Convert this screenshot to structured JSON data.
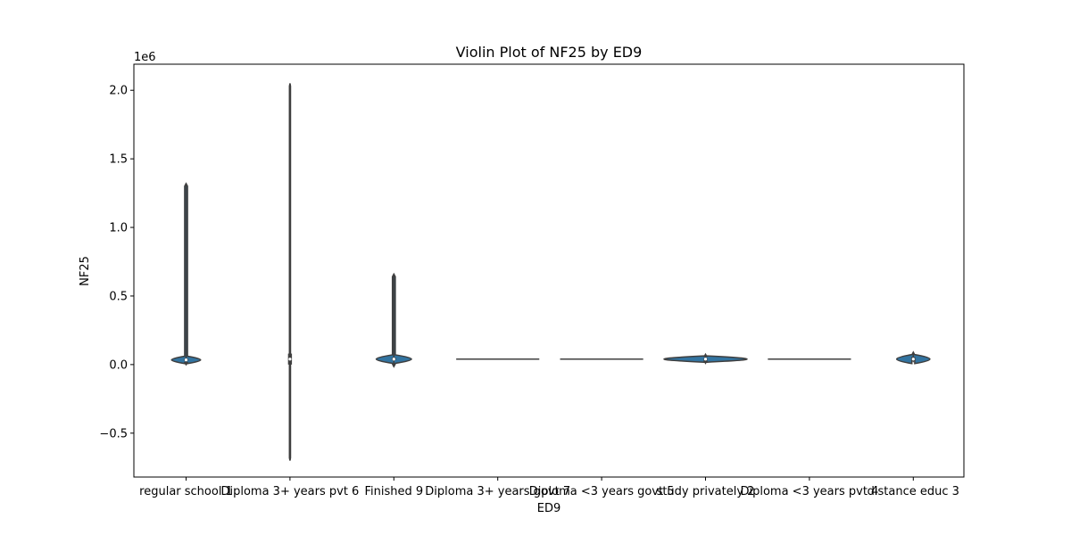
{
  "chart_data": {
    "type": "violin",
    "title": "Violin Plot of NF25 by ED9",
    "xlabel": "ED9",
    "ylabel": "NF25",
    "y_scale_label": "1e6",
    "ylim": [
      -0.82,
      2.19
    ],
    "y_ticks": [
      -0.5,
      0.0,
      0.5,
      1.0,
      1.5,
      2.0
    ],
    "y_tick_labels": [
      "−0.5",
      "0.0",
      "0.5",
      "1.0",
      "1.5",
      "2.0"
    ],
    "categories": [
      "regular school 1",
      "Diploma 3+ years pvt 6",
      "Finished 9",
      "Diploma 3+ years govt 7",
      "Diploma <3 years govt 5",
      "study privately 2",
      "Diploma <3 years pvt 4",
      "distance educ 3"
    ],
    "violins": [
      {
        "min": 0.0,
        "max": 1.32,
        "center": 0.034,
        "q1": 0.028,
        "q3": 0.042,
        "half_width": 0.14
      },
      {
        "min": -0.7,
        "max": 2.05,
        "center": 0.04,
        "q1": 0.0,
        "q3": 0.08,
        "half_width": 0.005
      },
      {
        "min": -0.015,
        "max": 0.66,
        "center": 0.04,
        "q1": 0.032,
        "q3": 0.05,
        "half_width": 0.17
      },
      {
        "min": 0.04,
        "max": 0.04,
        "center": 0.04,
        "q1": 0.04,
        "q3": 0.04,
        "half_width": 0.4
      },
      {
        "min": 0.04,
        "max": 0.04,
        "center": 0.04,
        "q1": 0.04,
        "q3": 0.04,
        "half_width": 0.4
      },
      {
        "min": 0.01,
        "max": 0.075,
        "center": 0.04,
        "q1": 0.035,
        "q3": 0.045,
        "half_width": 0.4
      },
      {
        "min": 0.04,
        "max": 0.04,
        "center": 0.04,
        "q1": 0.04,
        "q3": 0.04,
        "half_width": 0.4
      },
      {
        "min": 0.025,
        "max": 0.09,
        "center": 0.04,
        "q1": 0.035,
        "q3": 0.055,
        "half_width": 0.16
      }
    ],
    "fill_color": "#3274a1",
    "line_color": "#3f3f3f",
    "grid": false,
    "legend": "none"
  }
}
